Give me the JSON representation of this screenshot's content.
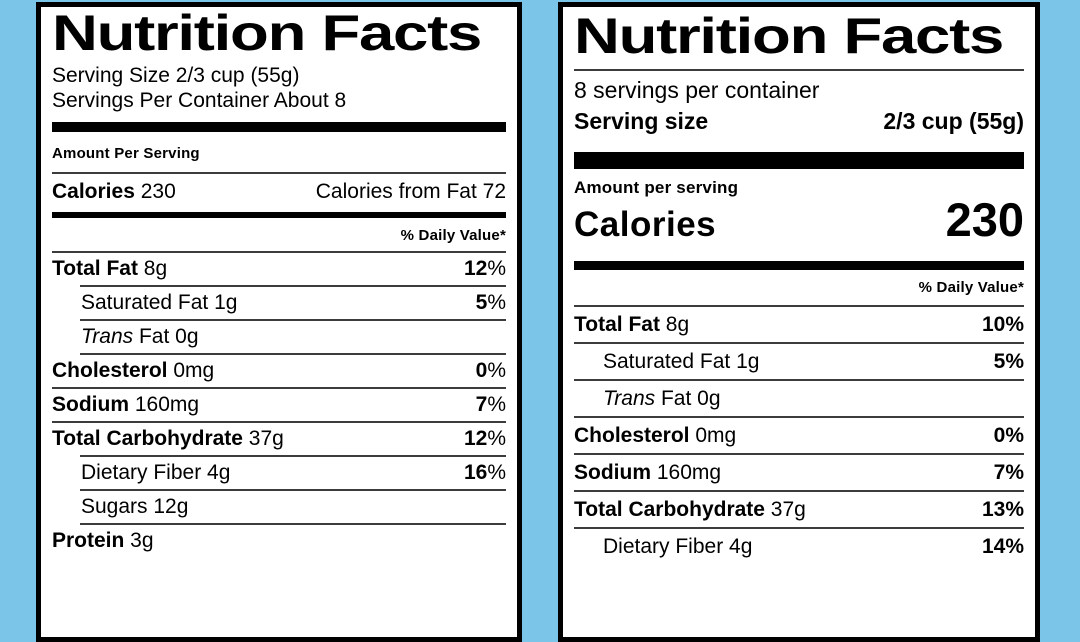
{
  "colors": {
    "background": "#7bc6e8",
    "label_background": "#ffffff",
    "text": "#000000"
  },
  "old_label": {
    "title": "Nutrition Facts",
    "serving_size": "Serving Size 2/3 cup (55g)",
    "servings_per_container": "Servings Per Container About 8",
    "amount_per_serving": "Amount Per Serving",
    "calories_label": "Calories",
    "calories_value": "230",
    "calories_from_fat": "Calories from Fat 72",
    "daily_value_header": "% Daily Value*",
    "percent_sign_bold": false,
    "rows": [
      {
        "strong": "Total Fat",
        "plain": " 8g",
        "dv": "12",
        "indent": false,
        "rule_above": "none"
      },
      {
        "plain": "Saturated Fat 1g",
        "dv": "5",
        "indent": true,
        "rule_above": "indent"
      },
      {
        "em": "Trans",
        "plain": " Fat 0g",
        "dv": null,
        "indent": true,
        "rule_above": "indent"
      },
      {
        "strong": "Cholesterol",
        "plain": " 0mg",
        "dv": "0",
        "indent": false,
        "rule_above": "indent"
      },
      {
        "strong": "Sodium",
        "plain": " 160mg",
        "dv": "7",
        "indent": false,
        "rule_above": "full"
      },
      {
        "strong": "Total Carbohydrate",
        "plain": " 37g",
        "dv": "12",
        "indent": false,
        "rule_above": "full"
      },
      {
        "plain": "Dietary Fiber 4g",
        "dv": "16",
        "indent": true,
        "rule_above": "indent"
      },
      {
        "plain": "Sugars 12g",
        "dv": null,
        "indent": true,
        "rule_above": "indent"
      },
      {
        "strong": "Protein",
        "plain": " 3g",
        "dv": null,
        "indent": false,
        "rule_above": "indent"
      }
    ]
  },
  "new_label": {
    "title": "Nutrition Facts",
    "servings_per_container": "8 servings per container",
    "serving_size_label": "Serving size",
    "serving_size_value": "2/3 cup (55g)",
    "amount_per_serving": "Amount per serving",
    "calories_label": "Calories",
    "calories_value": "230",
    "daily_value_header": "% Daily Value*",
    "percent_sign_bold": true,
    "rows": [
      {
        "strong": "Total Fat",
        "plain": " 8g",
        "dv": "10",
        "indent": false,
        "rule_above": "none"
      },
      {
        "plain": "Saturated Fat 1g",
        "dv": "5",
        "indent": true,
        "rule_above": "full"
      },
      {
        "em": "Trans",
        "plain": " Fat 0g",
        "dv": null,
        "indent": true,
        "rule_above": "full"
      },
      {
        "strong": "Cholesterol",
        "plain": " 0mg",
        "dv": "0",
        "indent": false,
        "rule_above": "full"
      },
      {
        "strong": "Sodium",
        "plain": " 160mg",
        "dv": "7",
        "indent": false,
        "rule_above": "full"
      },
      {
        "strong": "Total Carbohydrate",
        "plain": " 37g",
        "dv": "13",
        "indent": false,
        "rule_above": "full"
      },
      {
        "plain": "Dietary Fiber 4g",
        "dv": "14",
        "indent": true,
        "rule_above": "full"
      }
    ]
  }
}
